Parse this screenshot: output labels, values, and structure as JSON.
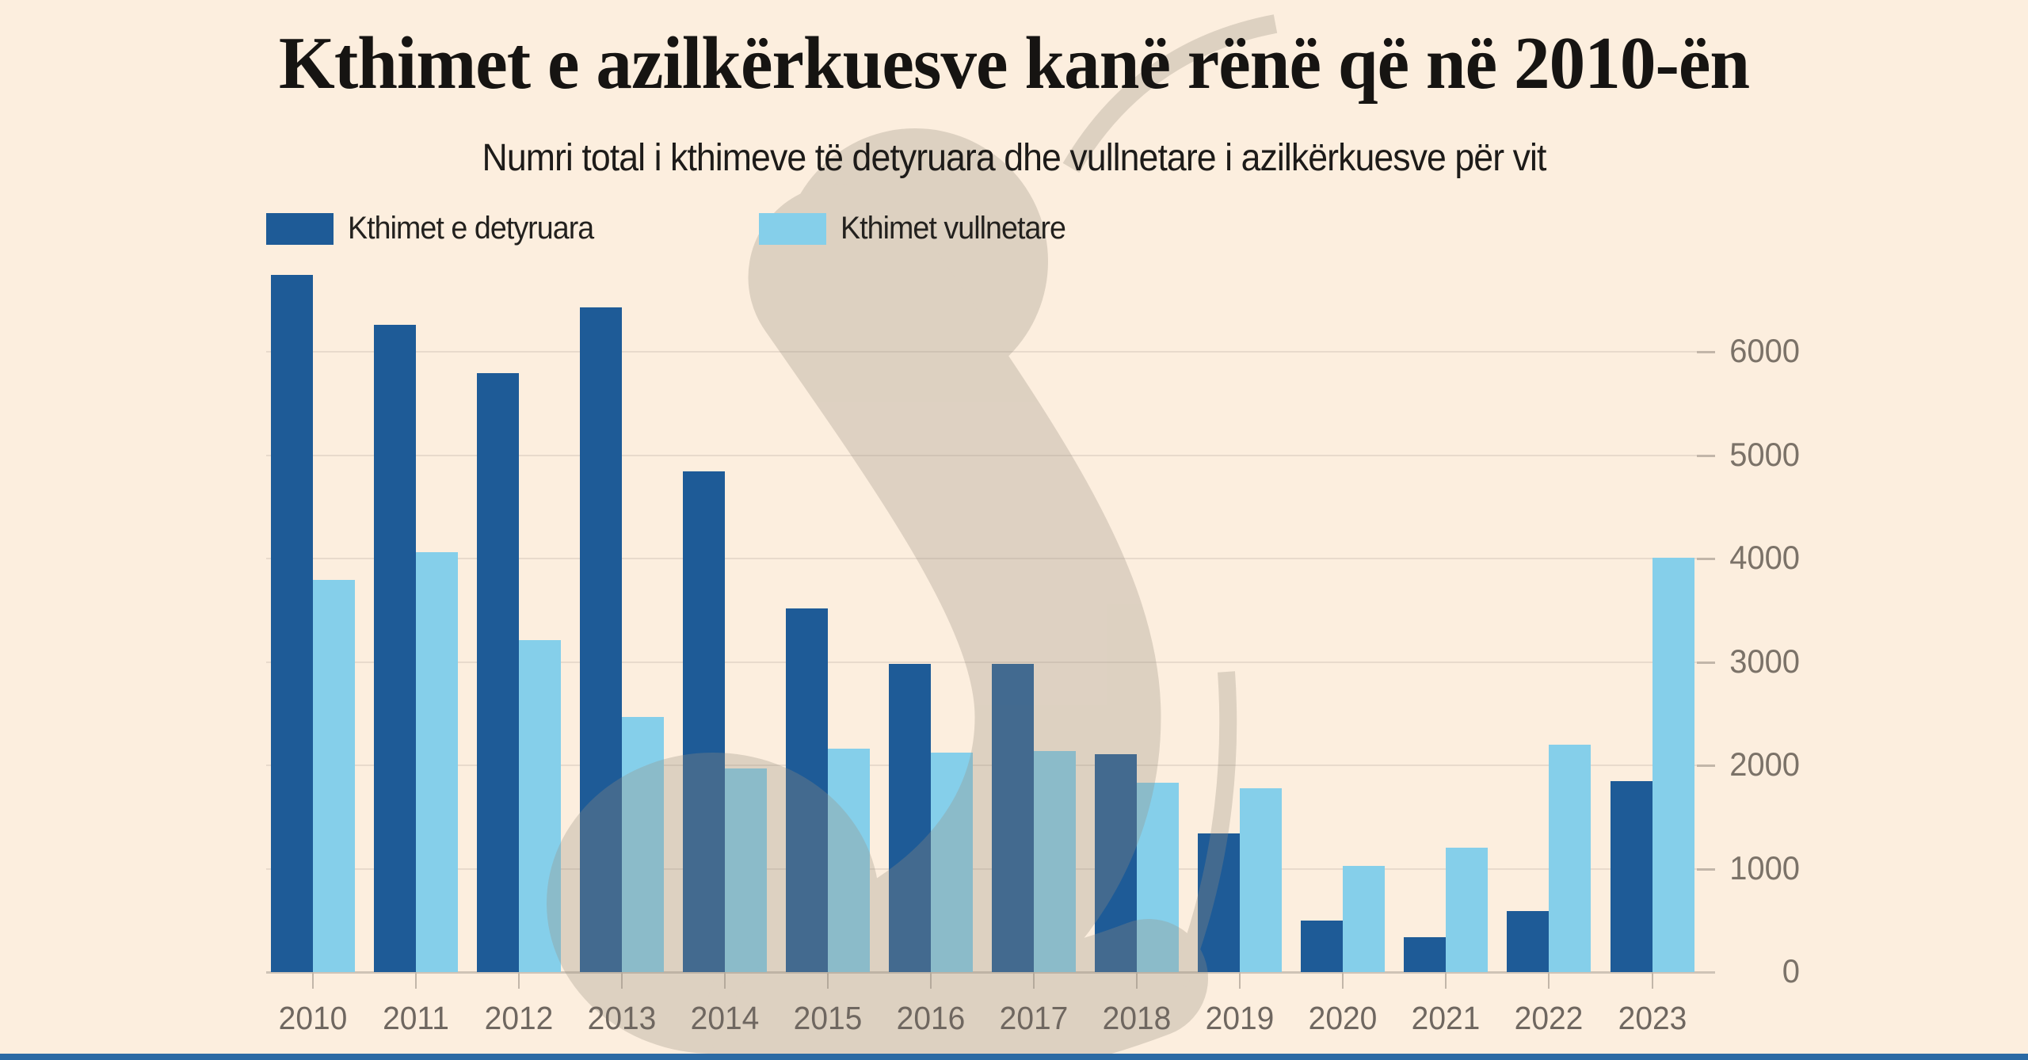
{
  "header": {
    "title": "Kthimet e azilkërkuesve kanë rënë që në 2010-ën",
    "subtitle": "Numri total i kthimeve të detyruara dhe vullnetare i azilkërkuesve për vit"
  },
  "legend": [
    {
      "label": "Kthimet e detyruara",
      "color": "#1e5b97"
    },
    {
      "label": "Kthimet vullnetare",
      "color": "#85cfea"
    }
  ],
  "chart_data": {
    "type": "bar",
    "title": "Kthimet e azilkërkuesve kanë rënë që në 2010-ën",
    "subtitle": "Numri total i kthimeve të detyruara dhe vullnetare i azilkërkuesve për vit",
    "categories": [
      "2010",
      "2011",
      "2012",
      "2013",
      "2014",
      "2015",
      "2016",
      "2017",
      "2018",
      "2019",
      "2020",
      "2021",
      "2022",
      "2023"
    ],
    "series": [
      {
        "name": "Kthimet e detyruara",
        "color": "#1e5b97",
        "values": [
          6740,
          6260,
          5790,
          6430,
          4840,
          3520,
          2980,
          2980,
          2110,
          1340,
          500,
          340,
          590,
          1850
        ]
      },
      {
        "name": "Kthimet vullnetare",
        "color": "#85cfea",
        "values": [
          3790,
          4060,
          3210,
          2470,
          1970,
          2160,
          2120,
          2140,
          1830,
          1780,
          1030,
          1200,
          2200,
          4010
        ]
      }
    ],
    "xlabel": "",
    "ylabel": "",
    "ylim": [
      0,
      6900
    ],
    "yticks": [
      0,
      1000,
      2000,
      3000,
      4000,
      5000,
      6000
    ],
    "grid": true,
    "legend_position": "top-left"
  },
  "colors": {
    "background": "#fceede",
    "bar_forced": "#1e5b97",
    "bar_voluntary": "#85cfea",
    "gridline": "#e8dacc",
    "axis_line": "#cfc3b6",
    "tick": "#c2b6a9",
    "y_label": "#7b7268",
    "x_label": "#6f6760",
    "title": "#161412",
    "watermark": "#998f80",
    "footer_strip": "#2b6aa4"
  }
}
